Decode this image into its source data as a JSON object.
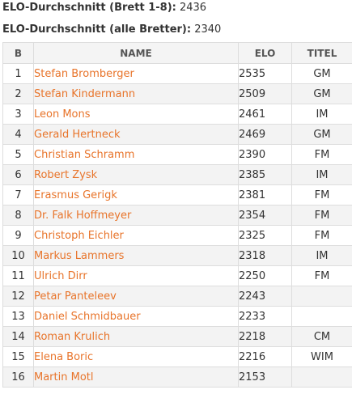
{
  "summary": {
    "top8_label": "ELO-Durchschnitt (Brett 1-8):",
    "top8_value": "2436",
    "all_label": "ELO-Durchschnitt (alle Bretter):",
    "all_value": "2340"
  },
  "table": {
    "headers": {
      "board": "B",
      "name": "NAME",
      "elo": "ELO",
      "title": "TITEL"
    },
    "rows": [
      {
        "board": "1",
        "name": "Stefan Bromberger",
        "elo": "2535",
        "title": "GM"
      },
      {
        "board": "2",
        "name": "Stefan Kindermann",
        "elo": "2509",
        "title": "GM"
      },
      {
        "board": "3",
        "name": "Leon Mons",
        "elo": "2461",
        "title": "IM"
      },
      {
        "board": "4",
        "name": "Gerald Hertneck",
        "elo": "2469",
        "title": "GM"
      },
      {
        "board": "5",
        "name": "Christian Schramm",
        "elo": "2390",
        "title": "FM"
      },
      {
        "board": "6",
        "name": "Robert Zysk",
        "elo": "2385",
        "title": "IM"
      },
      {
        "board": "7",
        "name": "Erasmus Gerigk",
        "elo": "2381",
        "title": "FM"
      },
      {
        "board": "8",
        "name": "Dr. Falk Hoffmeyer",
        "elo": "2354",
        "title": "FM"
      },
      {
        "board": "9",
        "name": "Christoph Eichler",
        "elo": "2325",
        "title": "FM"
      },
      {
        "board": "10",
        "name": "Markus Lammers",
        "elo": "2318",
        "title": "IM"
      },
      {
        "board": "11",
        "name": "Ulrich Dirr",
        "elo": "2250",
        "title": "FM"
      },
      {
        "board": "12",
        "name": "Petar Panteleev",
        "elo": "2243",
        "title": ""
      },
      {
        "board": "13",
        "name": "Daniel Schmidbauer",
        "elo": "2233",
        "title": ""
      },
      {
        "board": "14",
        "name": "Roman Krulich",
        "elo": "2218",
        "title": "CM"
      },
      {
        "board": "15",
        "name": "Elena Boric",
        "elo": "2216",
        "title": "WIM"
      },
      {
        "board": "16",
        "name": "Martin Motl",
        "elo": "2153",
        "title": ""
      }
    ]
  },
  "colors": {
    "link": "#e8742a",
    "header_bg": "#f4f4f4",
    "stripe_bg": "#f3f3f3",
    "border": "#dddddd"
  }
}
